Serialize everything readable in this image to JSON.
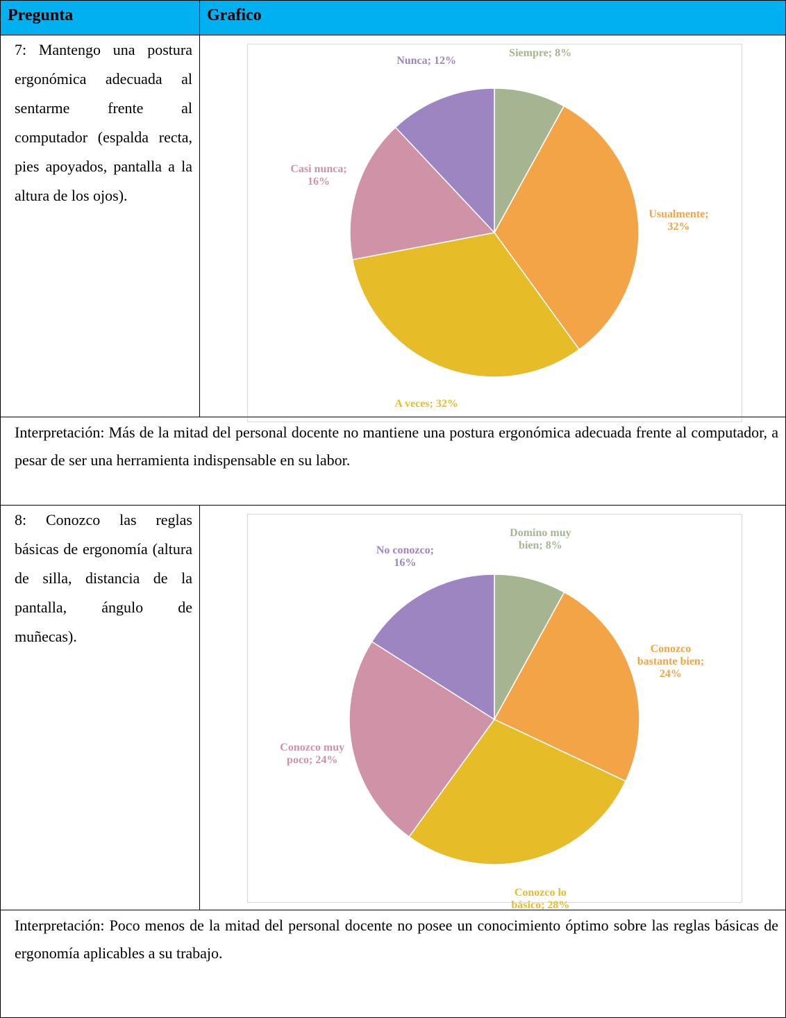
{
  "table": {
    "header": [
      "Pregunta",
      "Grafico"
    ],
    "rows": [
      {
        "question": "7: Mantengo una postura ergonómica adecuada al sentarme frente al computador (espalda recta, pies apoyados, pantalla a la altura de los ojos).",
        "chart_data": {
          "type": "pie",
          "values": [
            8,
            32,
            32,
            16,
            12
          ],
          "value_labels": [
            "Siempre; 8%",
            "Usualmente; 32%",
            "A veces; 32%",
            "Casi nunca; 16%",
            "Nunca; 12%"
          ],
          "colors": [
            "#a5b592",
            "#f3a447",
            "#e7bc29",
            "#d092a7",
            "#9c85c0"
          ]
        },
        "interpretation": "Interpretación: Más de la mitad del personal docente no mantiene una postura ergonómica adecuada frente al computador, a pesar de ser una herramienta indispensable en su labor."
      },
      {
        "question": "8: Conozco las reglas básicas de ergonomía (altura de silla, distancia de la pantalla, ángulo de muñecas).",
        "chart_data": {
          "type": "pie",
          "values": [
            8,
            24,
            28,
            24,
            16
          ],
          "value_labels": [
            "Domino muy bien; 8%",
            "Conozco bastante bien; 24%",
            "Conozco lo básico; 28%",
            "Conozco muy poco; 24%",
            "No conozco; 16%"
          ],
          "colors": [
            "#a5b592",
            "#f3a447",
            "#e7bc29",
            "#d092a7",
            "#9c85c0"
          ]
        },
        "interpretation": "Interpretación: Poco menos de la mitad del personal docente no posee un conocimiento óptimo sobre las reglas básicas de ergonomía aplicables a su trabajo."
      }
    ]
  }
}
